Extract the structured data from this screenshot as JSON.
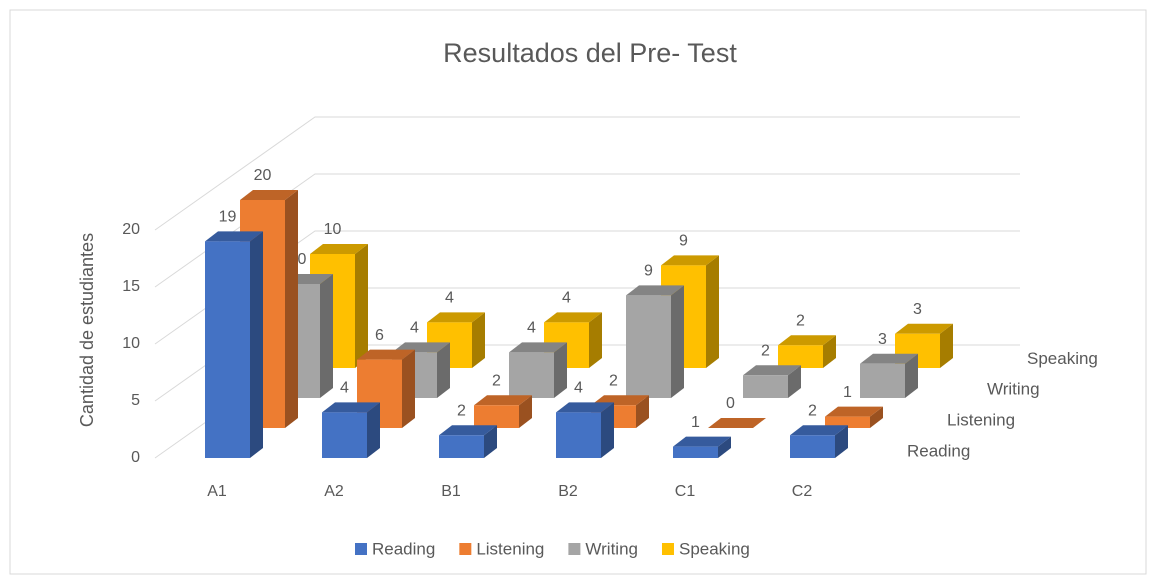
{
  "chart_data": {
    "type": "bar3d",
    "title": "Resultados del Pre- Test",
    "y_label": "Cantidad de estudiantes",
    "categories": [
      "A1",
      "A2",
      "B1",
      "B2",
      "C1",
      "C2"
    ],
    "series": [
      {
        "name": "Reading",
        "color": "#4472c4",
        "values": [
          19,
          4,
          2,
          4,
          1,
          2
        ]
      },
      {
        "name": "Listening",
        "color": "#ed7d31",
        "values": [
          20,
          6,
          2,
          2,
          0,
          1
        ]
      },
      {
        "name": "Writing",
        "color": "#a5a5a5",
        "values": [
          10,
          4,
          4,
          9,
          2,
          3
        ]
      },
      {
        "name": "Speaking",
        "color": "#ffc000",
        "values": [
          10,
          4,
          4,
          9,
          2,
          3
        ]
      }
    ],
    "ylim": [
      0,
      20
    ],
    "yticks": [
      0,
      5,
      10,
      15,
      20
    ],
    "grid": true,
    "legend": "bottom"
  }
}
